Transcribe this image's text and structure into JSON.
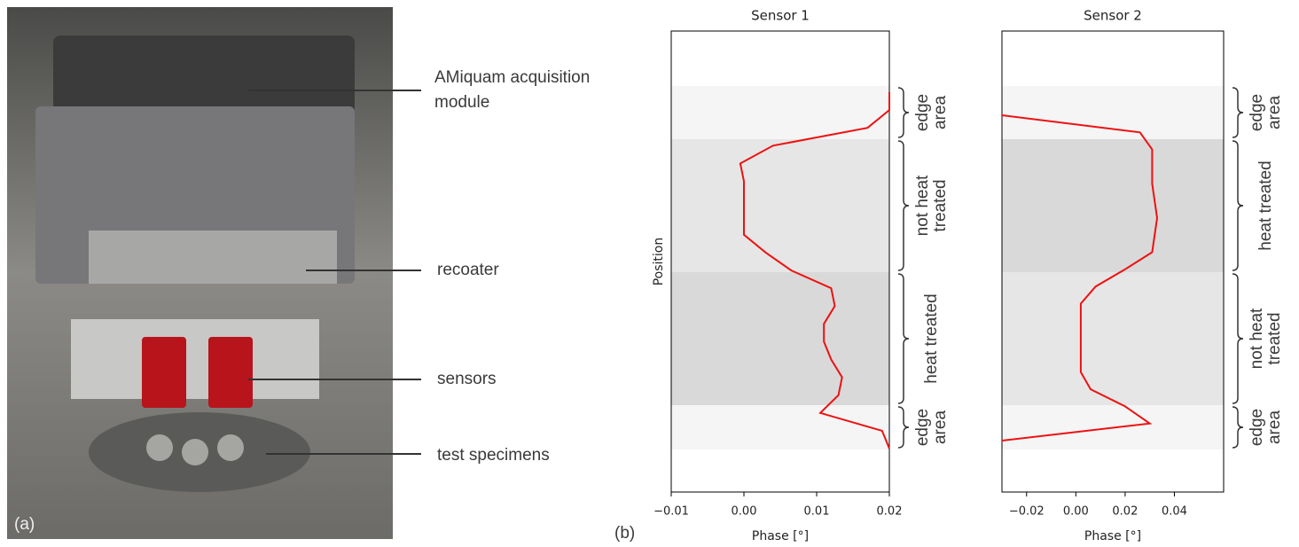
{
  "photo": {
    "panel_label": "(a)",
    "annotations": [
      [
        "AMiquam acquisition",
        "module"
      ],
      [
        "recoater"
      ],
      [
        "sensors"
      ],
      [
        "test specimens"
      ]
    ]
  },
  "panel_label_b": "(b)",
  "chart_data": [
    {
      "type": "line",
      "title": "Sensor 1",
      "xlabel": "Phase [°]",
      "ylabel": "Position",
      "xlim": [
        -0.01,
        0.02
      ],
      "xticks": [
        {
          "value": -0.01,
          "label": "−0.01"
        },
        {
          "value": 0,
          "label": "0.00"
        },
        0.01,
        0.02
      ],
      "regions": [
        {
          "label": [
            "edge",
            "area"
          ],
          "shade": "#f5f5f5"
        },
        {
          "label": [
            "not heat",
            "treated"
          ],
          "shade": "#e6e6e6"
        },
        {
          "label": [
            "heat treated"
          ],
          "shade": "#d9d9d9"
        },
        {
          "label": [
            "edge",
            "area"
          ],
          "shade": "#f5f5f5"
        }
      ],
      "series": [
        {
          "color": "#ee1111",
          "values": [
            0.02,
            0.02,
            0.017,
            0.004,
            -0.0005,
            0,
            0,
            0,
            0,
            0.003,
            0.0065,
            0.012,
            0.0125,
            0.011,
            0.011,
            0.012,
            0.0135,
            0.013,
            0.0105,
            0.019,
            0.02
          ]
        }
      ]
    },
    {
      "type": "line",
      "title": "Sensor 2",
      "xlabel": "Phase [°]",
      "xlim": [
        -0.03,
        0.06
      ],
      "xticks": [
        {
          "value": -0.02,
          "label": "−0.02"
        },
        {
          "value": 0,
          "label": "0.00"
        },
        0.02,
        0.04
      ],
      "regions": [
        {
          "label": [
            "edge",
            "area"
          ],
          "shade": "#f5f5f5"
        },
        {
          "label": [
            "heat treated"
          ],
          "shade": "#d9d9d9"
        },
        {
          "label": [
            "not heat",
            "treated"
          ],
          "shade": "#e6e6e6"
        },
        {
          "label": [
            "edge",
            "area"
          ],
          "shade": "#f5f5f5"
        }
      ],
      "series": [
        {
          "color": "#ee1111",
          "values": [
            -0.03,
            0.026,
            0.031,
            0.031,
            0.031,
            0.032,
            0.033,
            0.032,
            0.031,
            0.02,
            0.008,
            0.002,
            0.002,
            0.002,
            0.002,
            0.002,
            0.006,
            0.02,
            0.03,
            -0.03
          ]
        }
      ]
    }
  ]
}
